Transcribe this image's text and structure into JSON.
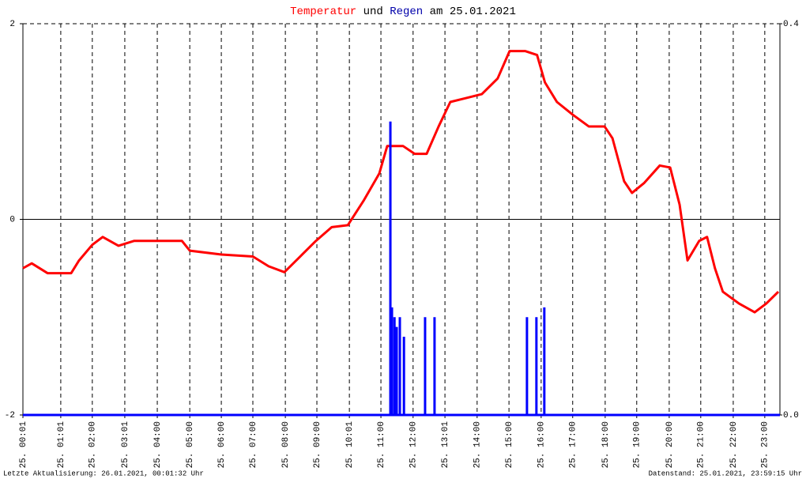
{
  "chart_data": {
    "type": "line",
    "title": [
      "Temperatur",
      "und",
      "Regen",
      "am 25.01.2021"
    ],
    "footer_left": "Letzte Aktualisierung: 26.01.2021, 00:01:32 Uhr",
    "footer_right": "Datenstand: 25.01.2021, 23:59:15 Uhr",
    "xlim": [
      0,
      24
    ],
    "xticks": [
      {
        "value": 0,
        "label": "25. 00:01"
      },
      {
        "value": 1.2,
        "label": "25. 01:01"
      },
      {
        "value": 2.2,
        "label": "25. 02:00"
      },
      {
        "value": 3.23,
        "label": "25. 03:01"
      },
      {
        "value": 4.26,
        "label": "25. 04:00"
      },
      {
        "value": 5.29,
        "label": "25. 05:00"
      },
      {
        "value": 6.29,
        "label": "25. 06:00"
      },
      {
        "value": 7.29,
        "label": "25. 07:00"
      },
      {
        "value": 8.32,
        "label": "25. 08:00"
      },
      {
        "value": 9.32,
        "label": "25. 09:00"
      },
      {
        "value": 10.35,
        "label": "25. 10:01"
      },
      {
        "value": 11.35,
        "label": "25. 11:00"
      },
      {
        "value": 12.37,
        "label": "25. 12:00"
      },
      {
        "value": 13.38,
        "label": "25. 13:01"
      },
      {
        "value": 14.4,
        "label": "25. 14:00"
      },
      {
        "value": 15.41,
        "label": "25. 15:00"
      },
      {
        "value": 16.43,
        "label": "25. 16:00"
      },
      {
        "value": 17.43,
        "label": "25. 17:00"
      },
      {
        "value": 18.46,
        "label": "25. 18:00"
      },
      {
        "value": 19.46,
        "label": "25. 19:00"
      },
      {
        "value": 20.49,
        "label": "25. 20:00"
      },
      {
        "value": 21.49,
        "label": "25. 21:00"
      },
      {
        "value": 22.52,
        "label": "25. 22:00"
      },
      {
        "value": 23.52,
        "label": "25. 23:00"
      }
    ],
    "ylim": [
      -2,
      2
    ],
    "yticks": [
      -2,
      0,
      2
    ],
    "y2lim": [
      0,
      0.4
    ],
    "y2ticks": [
      {
        "value": 0,
        "label": "0.0"
      },
      0.4
    ],
    "grid": true,
    "series": [
      {
        "name": "Temperatur",
        "color": "#ff0000",
        "x": [
          0,
          0.28,
          0.78,
          1.53,
          1.78,
          2.2,
          2.53,
          3.03,
          3.53,
          4.28,
          5.04,
          5.29,
          6.29,
          7.29,
          7.79,
          8.29,
          8.79,
          9.29,
          9.79,
          10.3,
          10.8,
          11.3,
          11.55,
          12.05,
          12.42,
          12.8,
          13.18,
          13.55,
          14.05,
          14.55,
          15.05,
          15.43,
          15.93,
          16.3,
          16.55,
          16.93,
          17.43,
          17.94,
          18.44,
          18.69,
          19.06,
          19.31,
          19.69,
          20.19,
          20.52,
          20.82,
          21.07,
          21.44,
          21.69,
          21.94,
          22.19,
          22.7,
          23.2,
          23.57,
          23.95
        ],
        "values": [
          -0.5,
          -0.45,
          -0.55,
          -0.55,
          -0.42,
          -0.26,
          -0.18,
          -0.27,
          -0.22,
          -0.22,
          -0.22,
          -0.32,
          -0.36,
          -0.38,
          -0.48,
          -0.54,
          -0.38,
          -0.22,
          -0.08,
          -0.06,
          0.19,
          0.47,
          0.75,
          0.75,
          0.67,
          0.67,
          0.95,
          1.2,
          1.24,
          1.28,
          1.44,
          1.72,
          1.72,
          1.68,
          1.4,
          1.2,
          1.07,
          0.95,
          0.95,
          0.83,
          0.39,
          0.27,
          0.37,
          0.55,
          0.53,
          0.15,
          -0.42,
          -0.22,
          -0.18,
          -0.5,
          -0.74,
          -0.86,
          -0.95,
          -0.86,
          -0.74
        ]
      },
      {
        "name": "Regen",
        "color": "#0000ff",
        "axis": "y2",
        "x": [
          11.65,
          11.7,
          11.78,
          11.85,
          11.95,
          12.08,
          12.75,
          13.05,
          15.98,
          16.28,
          16.53
        ],
        "values": [
          0.3,
          0.11,
          0.1,
          0.09,
          0.1,
          0.08,
          0.1,
          0.1,
          0.1,
          0.1,
          0.11
        ]
      }
    ]
  }
}
